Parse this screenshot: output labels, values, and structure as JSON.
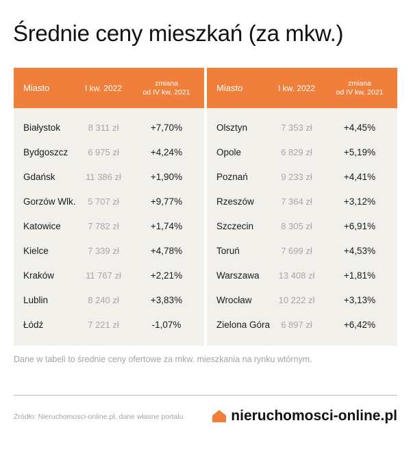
{
  "title": "Średnie ceny mieszkań (za mkw.)",
  "header": {
    "city": "Miasto",
    "price": "I kw. 2022",
    "change_line1": "zmiana",
    "change_line2": "od IV kw. 2021"
  },
  "left_rows": [
    {
      "city": "Białystok",
      "price": "8 311 zł",
      "change": "+7,70%"
    },
    {
      "city": "Bydgoszcz",
      "price": "6 975 zł",
      "change": "+4,24%"
    },
    {
      "city": "Gdańsk",
      "price": "11 386 zł",
      "change": "+1,90%"
    },
    {
      "city": "Gorzów Wlk.",
      "price": "5 707 zł",
      "change": "+9,77%"
    },
    {
      "city": "Katowice",
      "price": "7 782 zł",
      "change": "+1,74%"
    },
    {
      "city": "Kielce",
      "price": "7 339 zł",
      "change": "+4,78%"
    },
    {
      "city": "Kraków",
      "price": "11 767 zł",
      "change": "+2,21%"
    },
    {
      "city": "Lublin",
      "price": "8 240 zł",
      "change": "+3,83%"
    },
    {
      "city": "Łódź",
      "price": "7 221 zł",
      "change": "-1,07%"
    }
  ],
  "right_rows": [
    {
      "city": "Olsztyn",
      "price": "7 353 zł",
      "change": "+4,45%"
    },
    {
      "city": "Opole",
      "price": "6 829 zł",
      "change": "+5,19%"
    },
    {
      "city": "Poznań",
      "price": "9 233 zł",
      "change": "+4,41%"
    },
    {
      "city": "Rzeszów",
      "price": "7 364 zł",
      "change": "+3,12%"
    },
    {
      "city": "Szczecin",
      "price": "8 305 zł",
      "change": "+6,91%"
    },
    {
      "city": "Toruń",
      "price": "7 699 zł",
      "change": "+4,53%"
    },
    {
      "city": "Warszawa",
      "price": "13 408 zł",
      "change": "+1,81%"
    },
    {
      "city": "Wrocław",
      "price": "10 222 zł",
      "change": "+3,13%"
    },
    {
      "city": "Zielona Góra",
      "price": "6 897 zł",
      "change": "+6,42%"
    }
  ],
  "note": "Dane w tabeli to średnie ceny ofertowe za mkw. mieszkania na rynku wtórnym.",
  "source": "Źródło: Nieruchomosci-online.pl, dane własne portalu",
  "brand": {
    "name": "nieruchomosci-online.pl",
    "icon": "house-icon",
    "accent": "#f07f3c"
  }
}
